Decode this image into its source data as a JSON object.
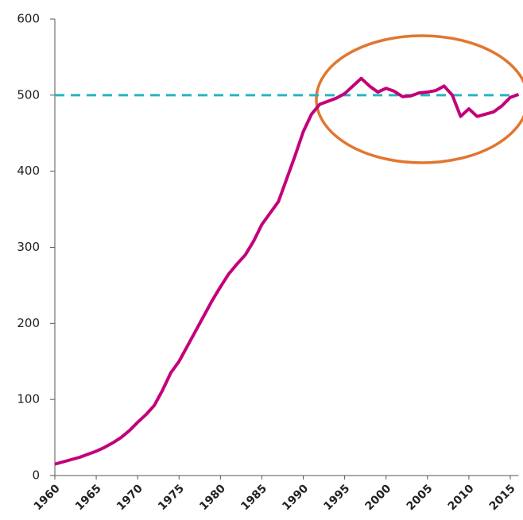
{
  "chart_data": {
    "type": "line",
    "x": [
      1960,
      1961,
      1962,
      1963,
      1964,
      1965,
      1966,
      1967,
      1968,
      1969,
      1970,
      1971,
      1972,
      1973,
      1974,
      1975,
      1976,
      1977,
      1978,
      1979,
      1980,
      1981,
      1982,
      1983,
      1984,
      1985,
      1986,
      1987,
      1988,
      1989,
      1990,
      1991,
      1992,
      1993,
      1994,
      1995,
      1996,
      1997,
      1998,
      1999,
      2000,
      2001,
      2002,
      2003,
      2004,
      2005,
      2006,
      2007,
      2008,
      2009,
      2010,
      2011,
      2012,
      2013,
      2014,
      2015,
      2016
    ],
    "series": [
      {
        "color": "#c3007a",
        "values": [
          15,
          18,
          21,
          24,
          28,
          32,
          37,
          43,
          50,
          59,
          70,
          80,
          92,
          112,
          135,
          150,
          170,
          190,
          210,
          230,
          248,
          265,
          278,
          290,
          308,
          330,
          345,
          360,
          390,
          420,
          452,
          475,
          488,
          492,
          496,
          502,
          512,
          522,
          512,
          504,
          509,
          505,
          498,
          499,
          503,
          504,
          506,
          512,
          500,
          472,
          482,
          472,
          475,
          478,
          486,
          497,
          501
        ]
      }
    ],
    "reference_line": {
      "value": 500,
      "color": "#2ab3c0"
    },
    "xlim": [
      1960,
      2016
    ],
    "xticks": [
      1960,
      1965,
      1970,
      1975,
      1980,
      1985,
      1990,
      1995,
      2000,
      2005,
      2010,
      2015
    ],
    "ylim": [
      0,
      600
    ],
    "yticks": [
      0,
      100,
      200,
      300,
      400,
      500,
      600
    ]
  }
}
